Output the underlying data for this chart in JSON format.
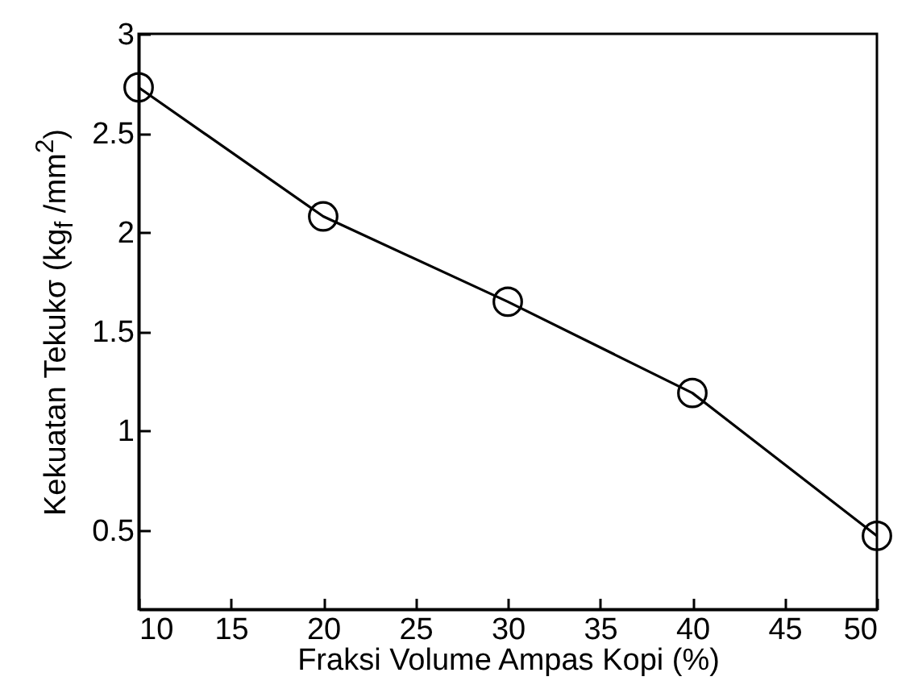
{
  "chart_data": {
    "type": "line",
    "xlabel": "Fraksi Volume Ampas Kopi (%)",
    "ylabel": "Kekuatan Tekukσ (kg$_{f}$ /mm$^{2}$)",
    "x": [
      10,
      20,
      30,
      40,
      50
    ],
    "series": [
      {
        "color": "#000000",
        "values": [
          2.73,
          2.08,
          1.65,
          1.19,
          0.47
        ]
      }
    ],
    "xlim": [
      10,
      50
    ],
    "xticks": [
      10,
      15,
      20,
      25,
      30,
      35,
      40,
      45,
      50
    ],
    "ylim": [
      0.1,
      3
    ],
    "yticks": [
      0.5,
      1,
      1.5,
      2,
      2.5,
      3
    ],
    "marker": "circle",
    "line_style": "solid"
  }
}
